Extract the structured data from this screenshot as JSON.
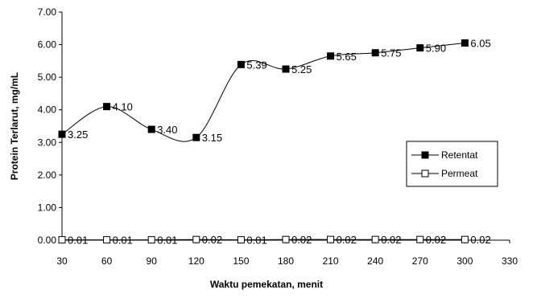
{
  "chart_data": {
    "type": "line",
    "xlabel": "Waktu pemekatan, menit",
    "ylabel": "Protein Terlarut, mg/mL",
    "xlim": [
      30,
      330
    ],
    "ylim": [
      0,
      7
    ],
    "x_ticks": [
      "30",
      "60",
      "90",
      "120",
      "150",
      "180",
      "210",
      "240",
      "270",
      "300",
      "330"
    ],
    "y_ticks": [
      "0.00",
      "1.00",
      "2.00",
      "3.00",
      "4.00",
      "5.00",
      "6.00",
      "7.00"
    ],
    "x": [
      30,
      60,
      90,
      120,
      150,
      180,
      210,
      240,
      270,
      300
    ],
    "series": [
      {
        "name": "Retentat",
        "marker": "filled-square",
        "color": "#000000",
        "smooth": true,
        "values": [
          3.25,
          4.1,
          3.4,
          3.15,
          5.39,
          5.25,
          5.65,
          5.75,
          5.9,
          6.05
        ],
        "labels": [
          "3.25",
          "4.10",
          "3.40",
          "3.15",
          "5.39",
          "5.25",
          "5.65",
          "5.75",
          "5.90",
          "6.05"
        ]
      },
      {
        "name": "Permeat",
        "marker": "open-square",
        "color": "#000000",
        "smooth": true,
        "values": [
          0.01,
          0.01,
          0.01,
          0.02,
          0.01,
          0.02,
          0.02,
          0.02,
          0.02,
          0.02
        ],
        "labels": [
          "0.01",
          "0.01",
          "0.01",
          "0.02",
          "0.01",
          "0.02",
          "0.02",
          "0.02",
          "0.02",
          "0.02"
        ]
      }
    ],
    "grid": false,
    "legend_position": "right"
  }
}
